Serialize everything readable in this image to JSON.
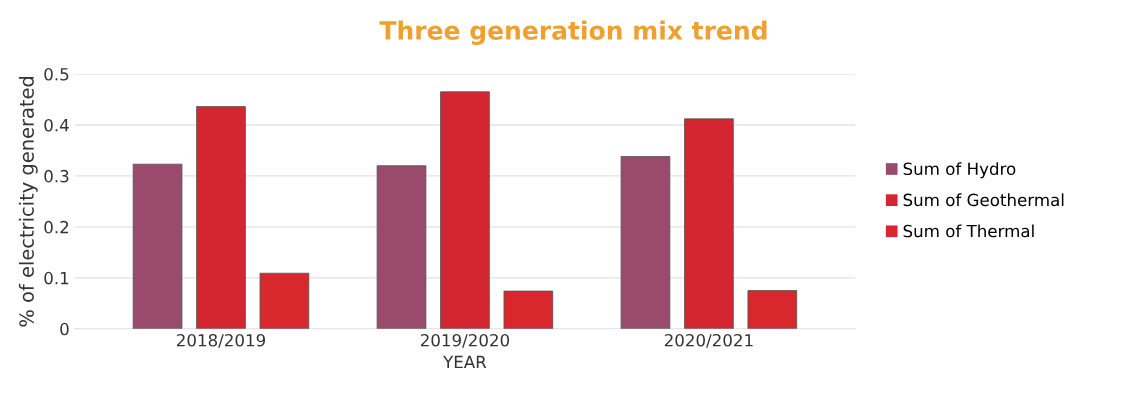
{
  "chart_data": {
    "type": "bar",
    "title": "Three generation mix trend",
    "xlabel": "YEAR",
    "ylabel": "% of electricity generated",
    "categories": [
      "2018/2019",
      "2019/2020",
      "2020/2021"
    ],
    "series": [
      {
        "name": "Sum of Hydro",
        "color": "#9a4a6c",
        "values": [
          0.323,
          0.32,
          0.338
        ]
      },
      {
        "name": "Sum of Geothermal",
        "color": "#d42630",
        "values": [
          0.436,
          0.465,
          0.412
        ]
      },
      {
        "name": "Sum of Thermal",
        "color": "#d8282e",
        "values": [
          0.109,
          0.074,
          0.075
        ]
      }
    ],
    "ylim": [
      0,
      0.5
    ],
    "yticks": [
      {
        "value": 0,
        "label": "0"
      },
      0.1,
      0.2,
      0.3,
      0.4,
      0.5
    ],
    "grid": "y",
    "legend": "right"
  }
}
